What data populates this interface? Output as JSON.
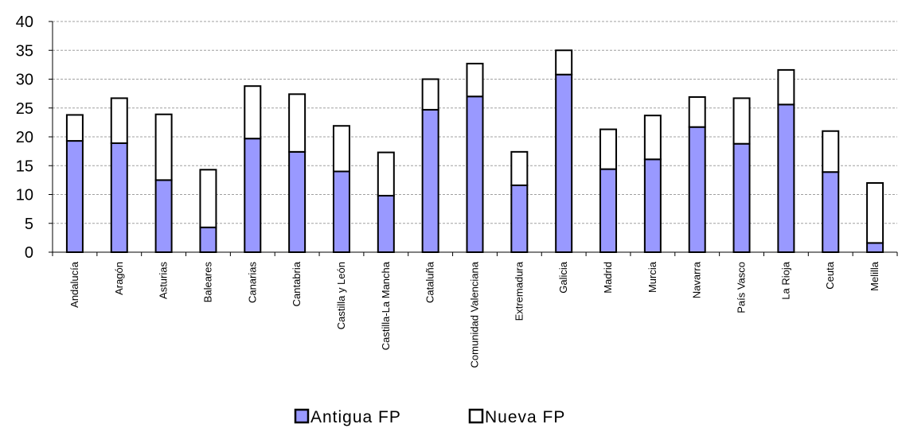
{
  "colors": {
    "antigua_fill": "#9999ff",
    "nueva_fill": "#ffffff",
    "bar_stroke": "#000000",
    "grid": "#a0a0a0",
    "axis": "#000000"
  },
  "chart_data": {
    "type": "bar",
    "stacked": true,
    "title": "",
    "xlabel": "",
    "ylabel": "",
    "ylim": [
      0,
      40
    ],
    "yticks": [
      0,
      5,
      10,
      15,
      20,
      25,
      30,
      35,
      40
    ],
    "grid": "horizontal dashed",
    "legend_position": "bottom",
    "categories": [
      "Andalucía",
      "Aragón",
      "Asturias",
      "Baleares",
      "Canarias",
      "Cantabria",
      "Castilla y León",
      "Castilla-La Mancha",
      "Cataluña",
      "Comunidad Valenciana",
      "Extremadura",
      "Galicia",
      "Madrid",
      "Murcia",
      "Navarra",
      "País Vasco",
      "La Rioja",
      "Ceuta",
      "Melilla"
    ],
    "series": [
      {
        "name": "Antigua FP",
        "values": [
          19.3,
          18.9,
          12.5,
          4.3,
          19.7,
          17.4,
          14.0,
          9.8,
          24.7,
          27.0,
          11.6,
          30.8,
          14.4,
          16.1,
          21.7,
          18.8,
          25.6,
          13.9,
          1.6
        ]
      },
      {
        "name": "Nueva FP",
        "values": [
          4.5,
          7.8,
          11.4,
          10.0,
          9.1,
          10.0,
          7.9,
          7.5,
          5.3,
          5.7,
          5.8,
          4.2,
          6.9,
          7.6,
          5.2,
          7.9,
          6.0,
          7.1,
          10.4
        ]
      }
    ]
  }
}
